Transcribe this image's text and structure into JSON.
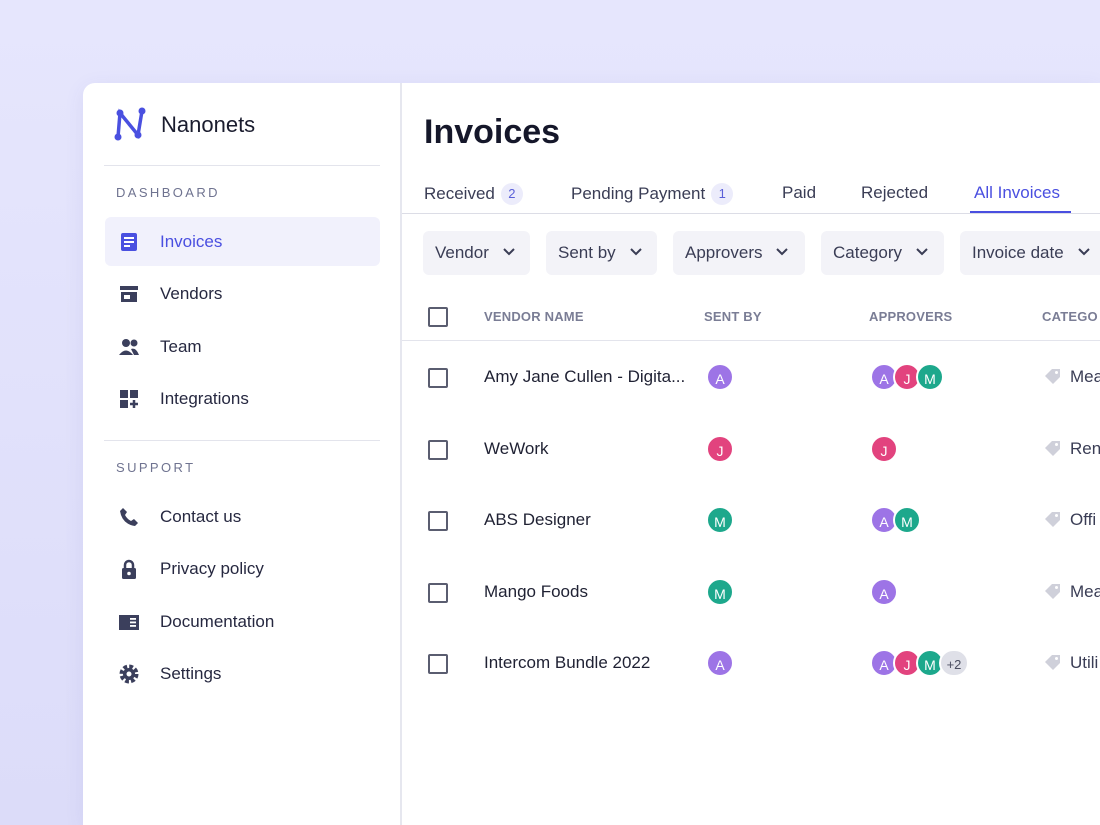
{
  "sidebar": {
    "brand": "Nanonets",
    "sections": [
      {
        "title": "DASHBOARD",
        "items": [
          "Invoices",
          "Vendors",
          "Team",
          "Integrations"
        ]
      },
      {
        "title": "SUPPORT",
        "items": [
          "Contact us",
          "Privacy policy",
          "Documentation",
          "Settings"
        ]
      }
    ]
  },
  "main": {
    "title": "Invoices",
    "tabs": [
      {
        "label": "Received",
        "count": 2
      },
      {
        "label": "Pending Payment",
        "count": 1
      },
      {
        "label": "Paid"
      },
      {
        "label": "Rejected"
      },
      {
        "label": "All Invoices"
      }
    ],
    "filters": [
      "Vendor",
      "Sent by",
      "Approvers",
      "Category",
      "Invoice date"
    ],
    "columns": [
      "VENDOR NAME",
      "SENT BY",
      "APPROVERS",
      "CATEGO"
    ],
    "rows": [
      {
        "vendor": "Amy Jane Cullen - Digita...",
        "sent_by": "A",
        "approvers": [
          "A",
          "J",
          "M"
        ],
        "category": "Mea"
      },
      {
        "vendor": "WeWork",
        "sent_by": "J",
        "approvers": [
          "J"
        ],
        "category": "Ren"
      },
      {
        "vendor": "ABS Designer",
        "sent_by": "M",
        "approvers": [
          "A",
          "M"
        ],
        "category": "Offi"
      },
      {
        "vendor": "Mango Foods",
        "sent_by": "M",
        "approvers": [
          "A"
        ],
        "category": "Mea"
      },
      {
        "vendor": "Intercom Bundle 2022",
        "sent_by": "A",
        "approvers": [
          "A",
          "J",
          "M"
        ],
        "more": "+2",
        "category": "Utili"
      }
    ]
  }
}
